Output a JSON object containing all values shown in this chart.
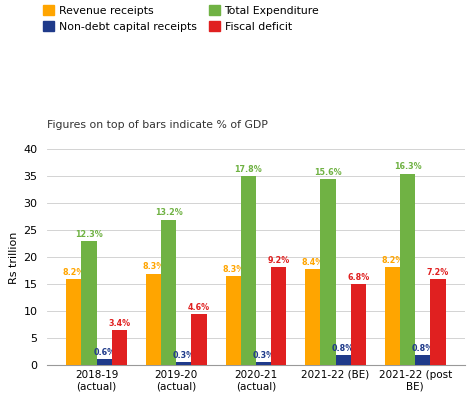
{
  "categories": [
    "2018-19\n(actual)",
    "2019-20\n(actual)",
    "2020-21\n(actual)",
    "2021-22 (BE)",
    "2021-22 (post\nBE)"
  ],
  "series_order": [
    "Revenue receipts",
    "Total Expenditure",
    "Non-debt capital receipts",
    "Fiscal deficit"
  ],
  "series": {
    "Revenue receipts": {
      "values": [
        16.0,
        17.0,
        16.5,
        17.8,
        18.2
      ],
      "color": "#FFA500",
      "gdp_pct": [
        "8.2%",
        "8.3%",
        "8.3%",
        "8.4%",
        "8.2%"
      ]
    },
    "Non-debt capital receipts": {
      "values": [
        1.2,
        0.7,
        0.7,
        2.0,
        2.0
      ],
      "color": "#1F3A8A",
      "gdp_pct": [
        "0.6%",
        "0.3%",
        "0.3%",
        "0.8%",
        "0.8%"
      ]
    },
    "Total Expenditure": {
      "values": [
        23.0,
        27.0,
        35.0,
        34.5,
        35.5
      ],
      "color": "#70B244",
      "gdp_pct": [
        "12.3%",
        "13.2%",
        "17.8%",
        "15.6%",
        "16.3%"
      ]
    },
    "Fiscal deficit": {
      "values": [
        6.5,
        9.5,
        18.2,
        15.0,
        16.0
      ],
      "color": "#E02020",
      "gdp_pct": [
        "3.4%",
        "4.6%",
        "9.2%",
        "6.8%",
        "7.2%"
      ]
    }
  },
  "legend_order": [
    "Revenue receipts",
    "Non-debt capital receipts",
    "Total Expenditure",
    "Fiscal deficit"
  ],
  "ylabel": "Rs trillion",
  "ylim": [
    0,
    40
  ],
  "yticks": [
    0,
    5,
    10,
    15,
    20,
    25,
    30,
    35,
    40
  ],
  "subtitle": "Figures on top of bars indicate % of GDP",
  "bar_width": 0.19,
  "background_color": "#FFFFFF",
  "gdp_label_colors": {
    "Revenue receipts": "#FFA500",
    "Non-debt capital receipts": "#1F3A8A",
    "Total Expenditure": "#70B244",
    "Fiscal deficit": "#E02020"
  }
}
